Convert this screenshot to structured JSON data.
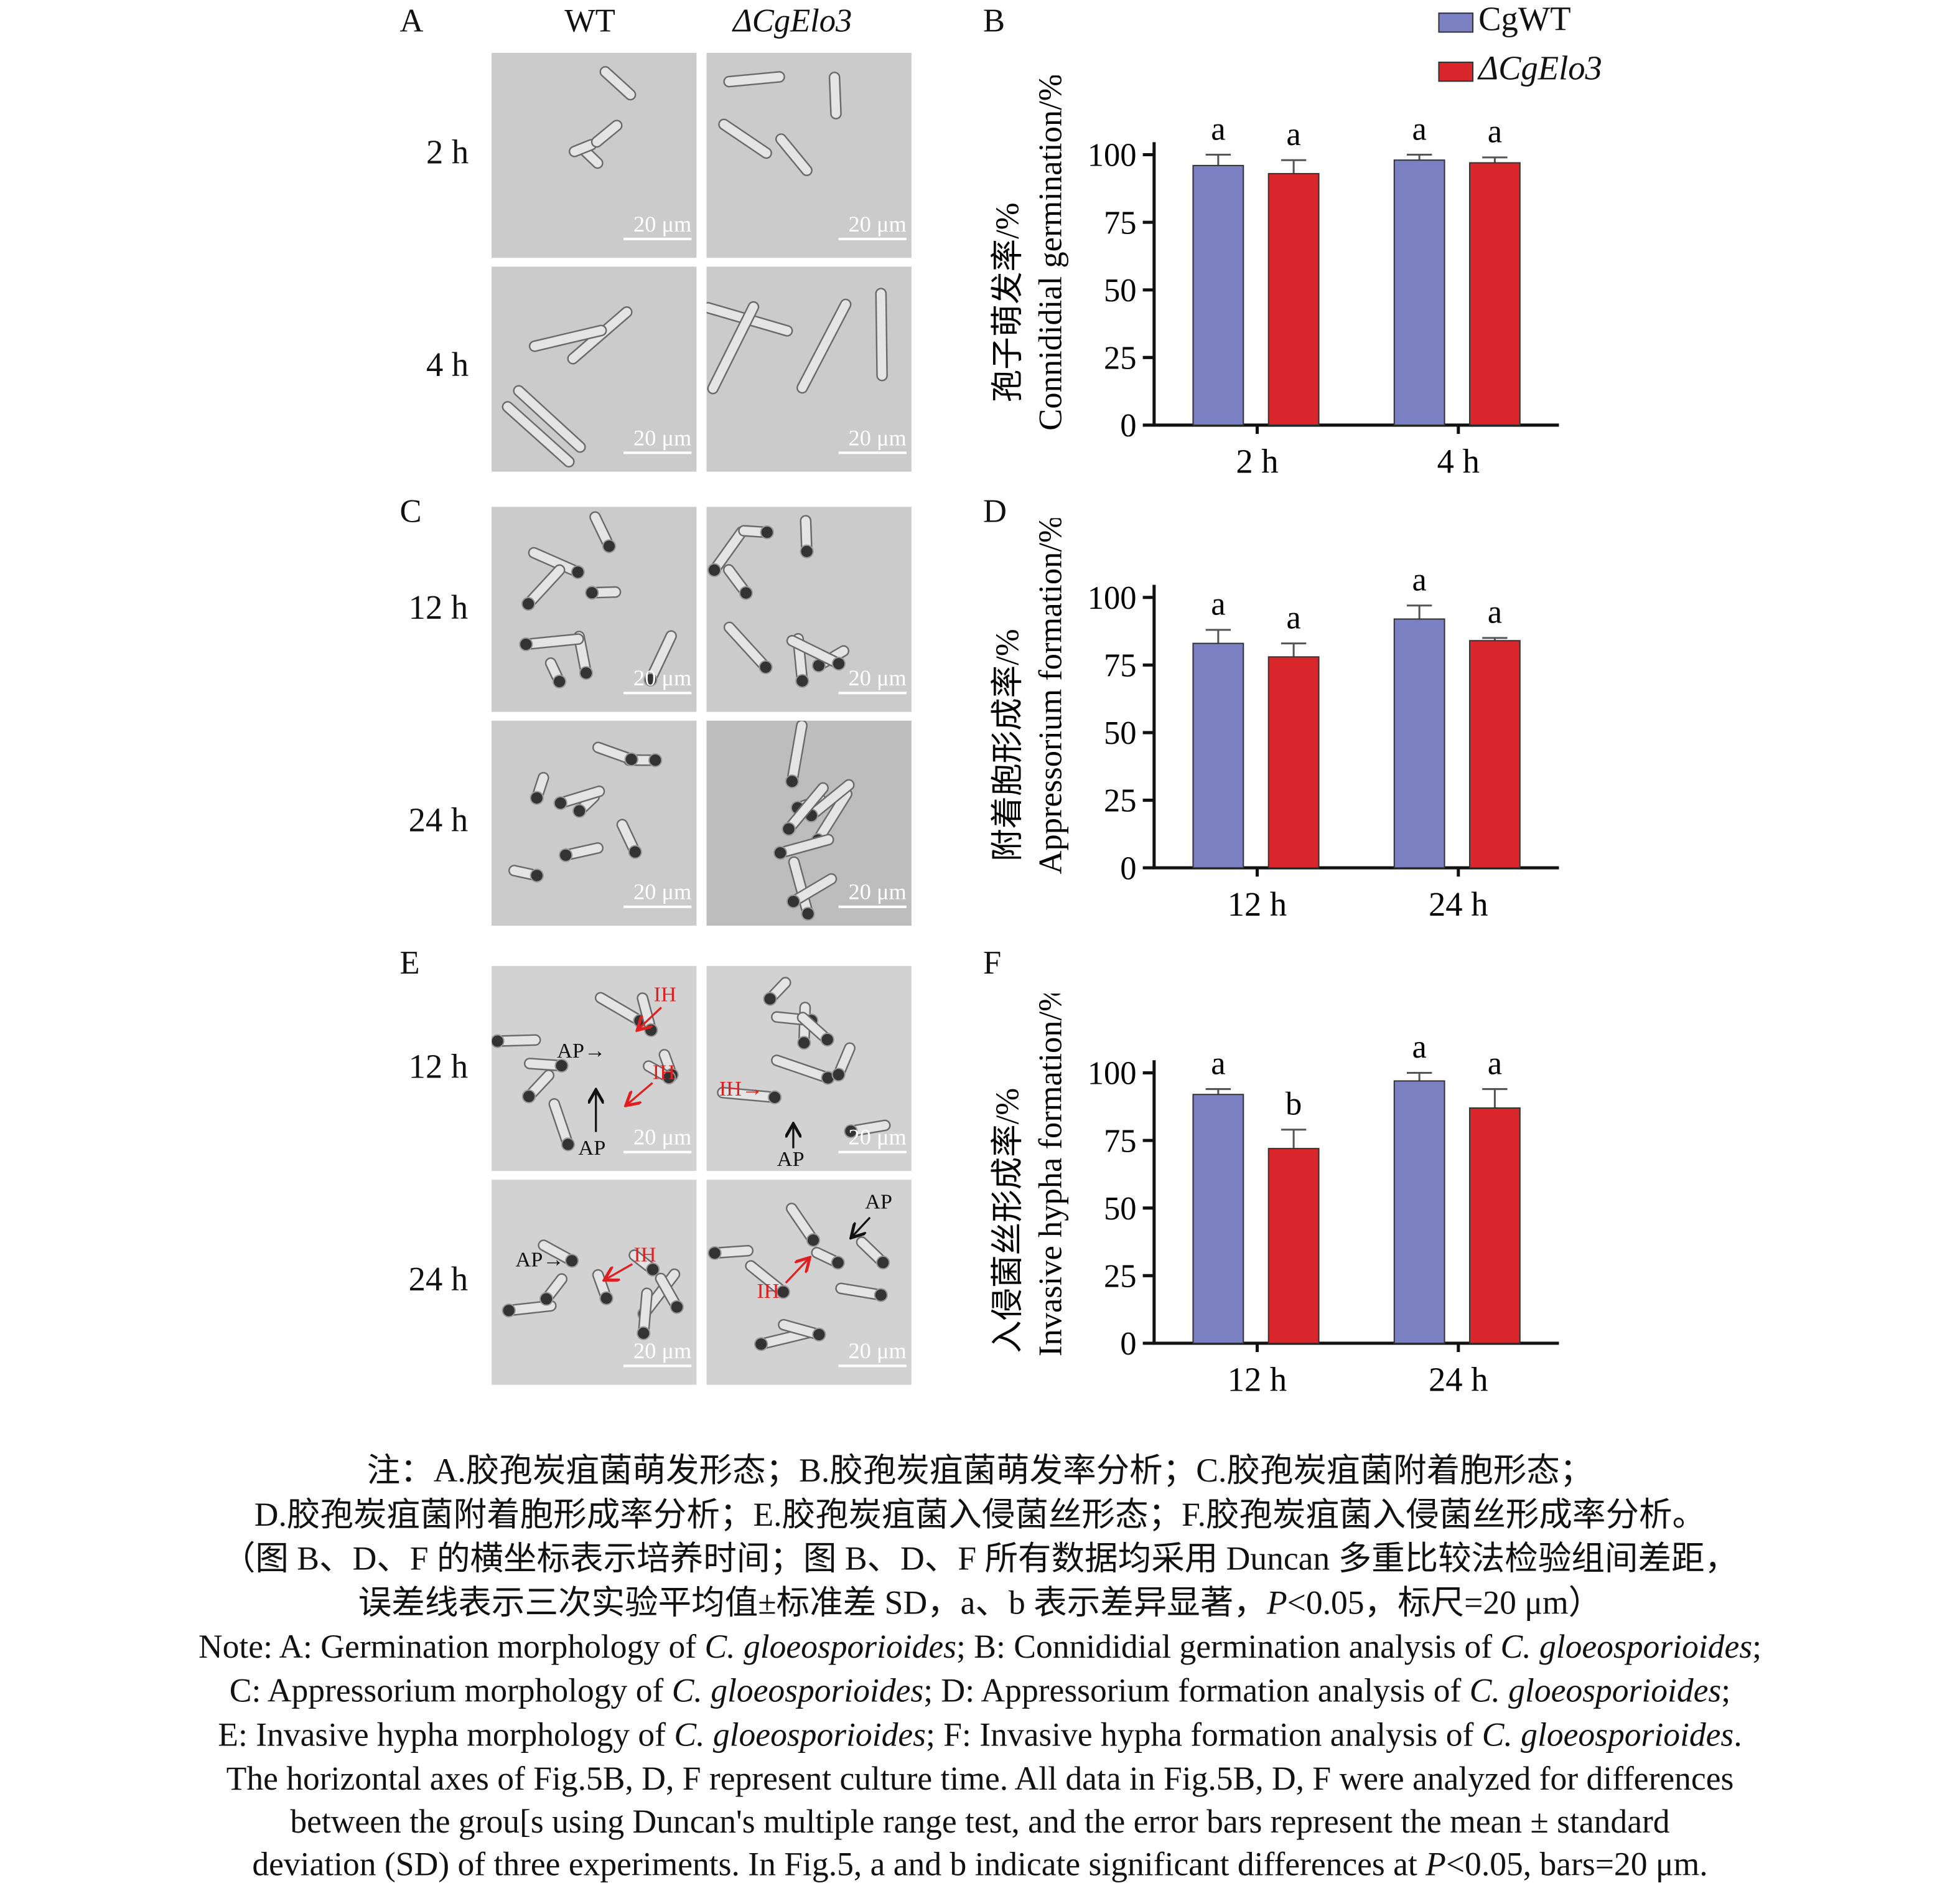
{
  "panels": {
    "A": "A",
    "B": "B",
    "C": "C",
    "D": "D",
    "E": "E",
    "F": "F"
  },
  "columns": {
    "wt": "WT",
    "mutant": "ΔCgElo3"
  },
  "rows": {
    "A": [
      "2 h",
      "4 h"
    ],
    "C": [
      "12 h",
      "24 h"
    ],
    "E": [
      "12 h",
      "24 h"
    ]
  },
  "scale_bar": "20 μm",
  "annotations": {
    "ap": "AP",
    "ih": "IH"
  },
  "colors": {
    "wt": "#7b80c2",
    "mutant": "#d9262a",
    "annotation": "#e02020"
  },
  "legend": {
    "wt": "CgWT",
    "mutant": "ΔCgElo3"
  },
  "chart_data": [
    {
      "panel": "B",
      "type": "bar",
      "ylabel_cn": "孢子萌发率/%",
      "ylabel_en": "Connididial germination/%",
      "ylim": [
        0,
        100
      ],
      "yticks": [
        "0",
        "25",
        "50",
        "75",
        "100"
      ],
      "categories": [
        "2 h",
        "4 h"
      ],
      "series": [
        {
          "name": "CgWT",
          "values": [
            96,
            98
          ],
          "errors": [
            4,
            2
          ],
          "letters": [
            "a",
            "a"
          ]
        },
        {
          "name": "ΔCgElo3",
          "values": [
            93,
            97
          ],
          "errors": [
            5,
            2
          ],
          "letters": [
            "a",
            "a"
          ]
        }
      ]
    },
    {
      "panel": "D",
      "type": "bar",
      "ylabel_cn": "附着胞形成率/%",
      "ylabel_en": "Appressorium formation/%",
      "ylim": [
        0,
        100
      ],
      "yticks": [
        "0",
        "25",
        "50",
        "75",
        "100"
      ],
      "categories": [
        "12 h",
        "24 h"
      ],
      "series": [
        {
          "name": "CgWT",
          "values": [
            83,
            92
          ],
          "errors": [
            5,
            5
          ],
          "letters": [
            "a",
            "a"
          ]
        },
        {
          "name": "ΔCgElo3",
          "values": [
            78,
            84
          ],
          "errors": [
            5,
            1
          ],
          "letters": [
            "a",
            "a"
          ]
        }
      ]
    },
    {
      "panel": "F",
      "type": "bar",
      "ylabel_cn": "入侵菌丝形成率/%",
      "ylabel_en": "Invasive hypha formation/%",
      "ylim": [
        0,
        100
      ],
      "yticks": [
        "0",
        "25",
        "50",
        "75",
        "100"
      ],
      "categories": [
        "12 h",
        "24 h"
      ],
      "series": [
        {
          "name": "CgWT",
          "values": [
            92,
            97
          ],
          "errors": [
            2,
            3
          ],
          "letters": [
            "a",
            "a"
          ]
        },
        {
          "name": "ΔCgElo3",
          "values": [
            72,
            87
          ],
          "errors": [
            7,
            7
          ],
          "letters": [
            "b",
            "a"
          ]
        }
      ]
    }
  ],
  "caption": [
    [
      {
        "t": "注：A.胶孢炭疽菌萌发形态；B.胶孢炭疽菌萌发率分析；C.胶孢炭疽菌附着胞形态；"
      }
    ],
    [
      {
        "t": "D.胶孢炭疽菌附着胞形成率分析；E.胶孢炭疽菌入侵菌丝形态；F.胶孢炭疽菌入侵菌丝形成率分析。"
      }
    ],
    [
      {
        "t": "（图 B、D、F 的横坐标表示培养时间；图 B、D、F 所有数据均采用 Duncan 多重比较法检验组间差距，"
      }
    ],
    [
      {
        "t": "误差线表示三次实验平均值±标准差 SD，a、b 表示差异显著，"
      },
      {
        "t": "P",
        "i": true
      },
      {
        "t": "<0.05，标尺=20 μm）"
      }
    ],
    [
      {
        "t": "Note: A: Germination morphology of "
      },
      {
        "t": "C. gloeosporioides",
        "i": true
      },
      {
        "t": "; B: Connididial germination analysis of "
      },
      {
        "t": "C. gloeosporioides",
        "i": true
      },
      {
        "t": ";"
      }
    ],
    [
      {
        "t": "C: Appressorium morphology of "
      },
      {
        "t": "C. gloeosporioides",
        "i": true
      },
      {
        "t": "; D: Appressorium formation analysis of "
      },
      {
        "t": "C. gloeosporioides",
        "i": true
      },
      {
        "t": ";"
      }
    ],
    [
      {
        "t": "E: Invasive hypha morphology of "
      },
      {
        "t": "C. gloeosporioides",
        "i": true
      },
      {
        "t": "; F: Invasive hypha formation analysis of "
      },
      {
        "t": "C. gloeosporioides",
        "i": true
      },
      {
        "t": "."
      }
    ],
    [
      {
        "t": "The horizontal axes of Fig.5B, D, F represent culture time. All data in Fig.5B, D, F were analyzed for differences"
      }
    ],
    [
      {
        "t": "between the grou[s using Duncan's multiple range test, and the error bars represent the mean ± standard"
      }
    ],
    [
      {
        "t": "deviation (SD) of three experiments. In Fig.5, a and b indicate significant differences at "
      },
      {
        "t": "P",
        "i": true
      },
      {
        "t": "<0.05, bars=20 μm."
      }
    ]
  ]
}
